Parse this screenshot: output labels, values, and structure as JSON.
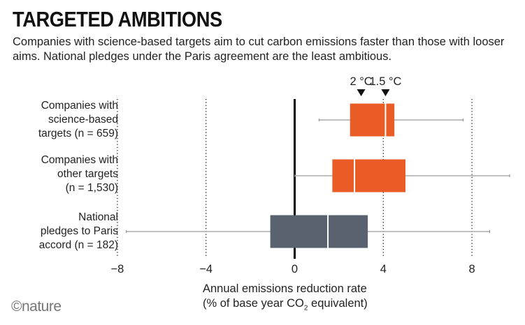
{
  "title": "TARGETED AMBITIONS",
  "subtitle": "Companies with science-based targets aim to cut carbon emissions faster than those with looser aims. National pledges under the Paris agreement are the least ambitious.",
  "logo": "©nature",
  "chart_data": {
    "type": "boxplot",
    "xlabel_line1": "Annual emissions reduction rate",
    "xlabel_line2_prefix": "(% of base year CO",
    "xlabel_line2_sub": "2",
    "xlabel_line2_suffix": " equivalent)",
    "xlim": [
      -8,
      10
    ],
    "xticks": [
      -8,
      -4,
      0,
      4,
      8
    ],
    "xtick_labels": [
      "−8",
      "−4",
      "0",
      "4",
      "8"
    ],
    "grid": "dotted vertical at -8, -4, 4, 8; solid line at 0",
    "categories": [
      {
        "label": [
          "Companies with",
          "science-based",
          "targets (n = 659)"
        ],
        "whisker_low": 1.1,
        "q1": 2.5,
        "median": 4.1,
        "q3": 4.5,
        "whisker_high": 7.6,
        "color": "#e95c26"
      },
      {
        "label": [
          "Companies with",
          "other targets",
          "(n = 1,530)"
        ],
        "whisker_low": 0,
        "q1": 1.7,
        "median": 2.7,
        "q3": 5.0,
        "whisker_high": 9.7,
        "color": "#e95c26"
      },
      {
        "label": [
          "National",
          "pledges to Paris",
          "accord (n = 182)"
        ],
        "whisker_low": -7.6,
        "q1": -1.1,
        "median": 1.5,
        "q3": 3.3,
        "whisker_high": 8.8,
        "color": "#5a6270"
      }
    ],
    "markers": [
      {
        "label": "2 °C",
        "value": 3.0
      },
      {
        "label": "1.5 °C",
        "value": 4.1
      }
    ]
  }
}
